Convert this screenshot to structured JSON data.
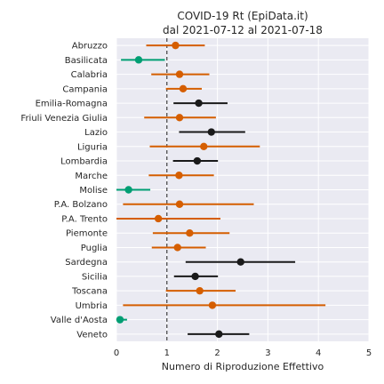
{
  "chart_data": {
    "type": "scatter",
    "title_lines": [
      "COVID-19 Rt (EpiData.it)",
      "dal 2021-07-12 al 2021-07-18"
    ],
    "xlabel": "Numero di Riproduzione Effettivo",
    "ylabel": "",
    "xlim": [
      0,
      5
    ],
    "xticks": [
      0,
      1,
      2,
      3,
      4,
      5
    ],
    "reference_line_x": 1,
    "grid": true,
    "colors": {
      "low": "#009e73",
      "high": "#d55e00",
      "mid": "#1a1a1a",
      "background": "#eaeaf2",
      "grid": "#ffffff"
    },
    "regions": [
      {
        "name": "Abruzzo",
        "rt": 1.17,
        "low": 0.59,
        "high": 1.75,
        "color": "high"
      },
      {
        "name": "Basilicata",
        "rt": 0.44,
        "low": 0.09,
        "high": 0.96,
        "color": "low"
      },
      {
        "name": "Calabria",
        "rt": 1.25,
        "low": 0.69,
        "high": 1.84,
        "color": "high"
      },
      {
        "name": "Campania",
        "rt": 1.32,
        "low": 0.98,
        "high": 1.69,
        "color": "high"
      },
      {
        "name": "Emilia-Romagna",
        "rt": 1.63,
        "low": 1.13,
        "high": 2.2,
        "color": "mid"
      },
      {
        "name": "Friuli Venezia Giulia",
        "rt": 1.25,
        "low": 0.55,
        "high": 1.97,
        "color": "high"
      },
      {
        "name": "Lazio",
        "rt": 1.88,
        "low": 1.24,
        "high": 2.55,
        "color": "mid"
      },
      {
        "name": "Liguria",
        "rt": 1.73,
        "low": 0.66,
        "high": 2.84,
        "color": "high"
      },
      {
        "name": "Lombardia",
        "rt": 1.6,
        "low": 1.12,
        "high": 2.01,
        "color": "mid"
      },
      {
        "name": "Marche",
        "rt": 1.24,
        "low": 0.64,
        "high": 1.93,
        "color": "high"
      },
      {
        "name": "Molise",
        "rt": 0.24,
        "low": 0.0,
        "high": 0.67,
        "color": "low"
      },
      {
        "name": "P.A. Bolzano",
        "rt": 1.25,
        "low": 0.13,
        "high": 2.72,
        "color": "high"
      },
      {
        "name": "P.A. Trento",
        "rt": 0.83,
        "low": 0.0,
        "high": 2.06,
        "color": "high"
      },
      {
        "name": "Piemonte",
        "rt": 1.45,
        "low": 0.72,
        "high": 2.24,
        "color": "high"
      },
      {
        "name": "Puglia",
        "rt": 1.21,
        "low": 0.7,
        "high": 1.77,
        "color": "high"
      },
      {
        "name": "Sardegna",
        "rt": 2.46,
        "low": 1.37,
        "high": 3.54,
        "color": "mid"
      },
      {
        "name": "Sicilia",
        "rt": 1.56,
        "low": 1.14,
        "high": 2.01,
        "color": "mid"
      },
      {
        "name": "Toscana",
        "rt": 1.65,
        "low": 0.98,
        "high": 2.36,
        "color": "high"
      },
      {
        "name": "Umbria",
        "rt": 1.9,
        "low": 0.13,
        "high": 4.14,
        "color": "high"
      },
      {
        "name": "Valle d'Aosta",
        "rt": 0.07,
        "low": 0.0,
        "high": 0.21,
        "color": "low"
      },
      {
        "name": "Veneto",
        "rt": 2.03,
        "low": 1.41,
        "high": 2.63,
        "color": "mid"
      }
    ]
  }
}
